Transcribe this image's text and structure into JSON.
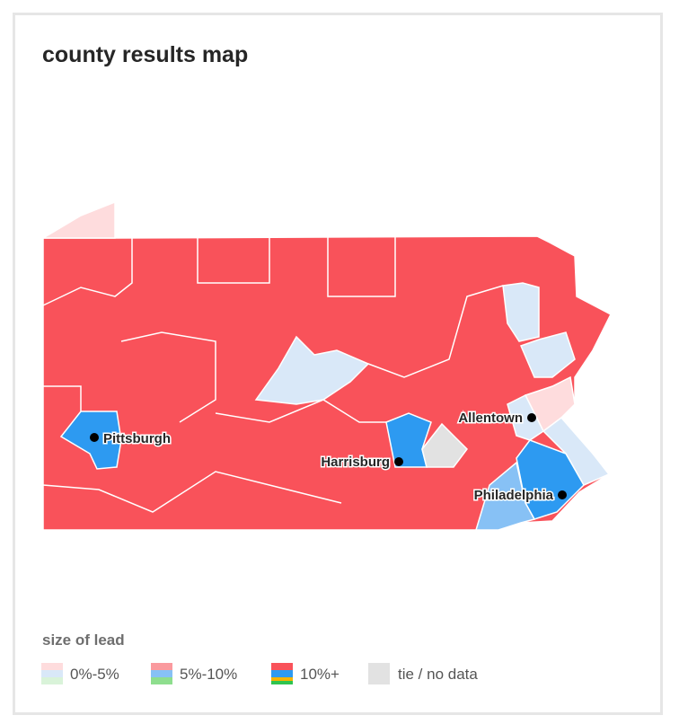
{
  "header": {
    "title": "county results map"
  },
  "map": {
    "cities": [
      {
        "label": "Pittsburgh"
      },
      {
        "label": "Harrisburg"
      },
      {
        "label": "Allentown"
      },
      {
        "label": "Philadelphia"
      }
    ]
  },
  "legend": {
    "title": "size of lead",
    "items": [
      {
        "label": "0%-5%"
      },
      {
        "label": "5%-10%"
      },
      {
        "label": "10%+"
      },
      {
        "label": "tie / no data"
      }
    ]
  }
}
